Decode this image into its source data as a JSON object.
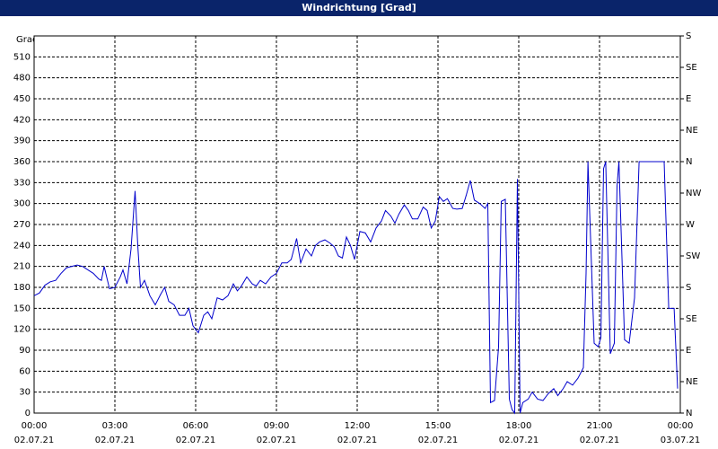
{
  "chart_data": {
    "type": "line",
    "title": "Windrichtung [Grad]",
    "y_label": "Grad",
    "xlim": [
      0,
      24
    ],
    "xticks": [
      {
        "value": 0,
        "label": "00:00",
        "date": "02.07.21"
      },
      {
        "value": 3,
        "label": "03:00",
        "date": "02.07.21"
      },
      {
        "value": 6,
        "label": "06:00",
        "date": "02.07.21"
      },
      {
        "value": 9,
        "label": "09:00",
        "date": "02.07.21"
      },
      {
        "value": 12,
        "label": "12:00",
        "date": "02.07.21"
      },
      {
        "value": 15,
        "label": "15:00",
        "date": "02.07.21"
      },
      {
        "value": 18,
        "label": "18:00",
        "date": "02.07.21"
      },
      {
        "value": 21,
        "label": "21:00",
        "date": "02.07.21"
      },
      {
        "value": 24,
        "label": "00:00",
        "date": "03.07.21"
      }
    ],
    "ylim": [
      0,
      540
    ],
    "yticks": [
      0,
      30,
      60,
      90,
      120,
      150,
      180,
      210,
      240,
      270,
      300,
      330,
      360,
      390,
      420,
      450,
      480,
      510
    ],
    "y2lim": [
      0,
      540
    ],
    "y2ticks": [
      {
        "value": 0,
        "label": "N"
      },
      {
        "value": 45,
        "label": "NE"
      },
      {
        "value": 90,
        "label": "E"
      },
      {
        "value": 135,
        "label": "SE"
      },
      {
        "value": 180,
        "label": "S"
      },
      {
        "value": 225,
        "label": "SW"
      },
      {
        "value": 270,
        "label": "W"
      },
      {
        "value": 315,
        "label": "NW"
      },
      {
        "value": 360,
        "label": "N"
      },
      {
        "value": 405,
        "label": "NE"
      },
      {
        "value": 450,
        "label": "E"
      },
      {
        "value": 495,
        "label": "SE"
      },
      {
        "value": 540,
        "label": "S"
      }
    ],
    "grid": true,
    "color": "#0000cc",
    "x": [
      0,
      0.2,
      0.4,
      0.6,
      0.8,
      1.0,
      1.2,
      1.4,
      1.6,
      1.8,
      2.0,
      2.2,
      2.4,
      2.5,
      2.6,
      2.8,
      3.0,
      3.2,
      3.3,
      3.45,
      3.6,
      3.75,
      3.85,
      3.95,
      4.1,
      4.3,
      4.5,
      4.7,
      4.85,
      5.0,
      5.2,
      5.4,
      5.6,
      5.75,
      5.9,
      6.0,
      6.1,
      6.3,
      6.45,
      6.6,
      6.8,
      7.0,
      7.2,
      7.4,
      7.55,
      7.7,
      7.9,
      8.1,
      8.25,
      8.4,
      8.6,
      8.8,
      9.0,
      9.2,
      9.4,
      9.55,
      9.75,
      9.9,
      10.1,
      10.3,
      10.45,
      10.6,
      10.8,
      11.0,
      11.15,
      11.3,
      11.45,
      11.6,
      11.75,
      11.9,
      12.1,
      12.3,
      12.5,
      12.7,
      12.9,
      13.05,
      13.25,
      13.4,
      13.55,
      13.75,
      13.9,
      14.05,
      14.25,
      14.45,
      14.6,
      14.75,
      14.9,
      15.05,
      15.2,
      15.35,
      15.55,
      15.7,
      15.9,
      16.05,
      16.2,
      16.35,
      16.55,
      16.75,
      16.85,
      16.95,
      17.1,
      17.25,
      17.35,
      17.5,
      17.65,
      17.75,
      17.85,
      17.95,
      18.05,
      18.15,
      18.35,
      18.5,
      18.7,
      18.9,
      19.1,
      19.3,
      19.45,
      19.65,
      19.8,
      20.0,
      20.2,
      20.4,
      20.5,
      20.57,
      20.8,
      20.95,
      21.05,
      21.15,
      21.23,
      21.4,
      21.55,
      21.65,
      21.72,
      21.93,
      22.1,
      22.3,
      22.47,
      22.8,
      23.1,
      23.4,
      23.57,
      23.77,
      23.9
    ],
    "values": [
      168,
      172,
      183,
      188,
      190,
      200,
      208,
      210,
      212,
      210,
      205,
      200,
      192,
      190,
      210,
      178,
      180,
      195,
      205,
      185,
      235,
      318,
      240,
      180,
      190,
      168,
      155,
      170,
      180,
      160,
      155,
      140,
      140,
      150,
      125,
      120,
      115,
      140,
      145,
      135,
      165,
      162,
      168,
      185,
      175,
      182,
      195,
      185,
      182,
      190,
      185,
      195,
      200,
      215,
      215,
      220,
      250,
      215,
      235,
      225,
      240,
      245,
      248,
      243,
      238,
      225,
      222,
      252,
      240,
      220,
      260,
      258,
      245,
      265,
      275,
      290,
      282,
      272,
      285,
      298,
      290,
      278,
      278,
      295,
      290,
      265,
      275,
      310,
      303,
      307,
      293,
      292,
      293,
      312,
      333,
      305,
      300,
      293,
      300,
      15,
      18,
      95,
      303,
      306,
      20,
      5,
      0,
      335,
      0,
      15,
      20,
      30,
      20,
      18,
      28,
      35,
      25,
      35,
      45,
      40,
      50,
      65,
      200,
      360,
      100,
      95,
      108,
      350,
      360,
      85,
      100,
      325,
      360,
      105,
      100,
      165,
      360,
      360,
      360,
      360,
      150,
      150,
      35
    ]
  }
}
